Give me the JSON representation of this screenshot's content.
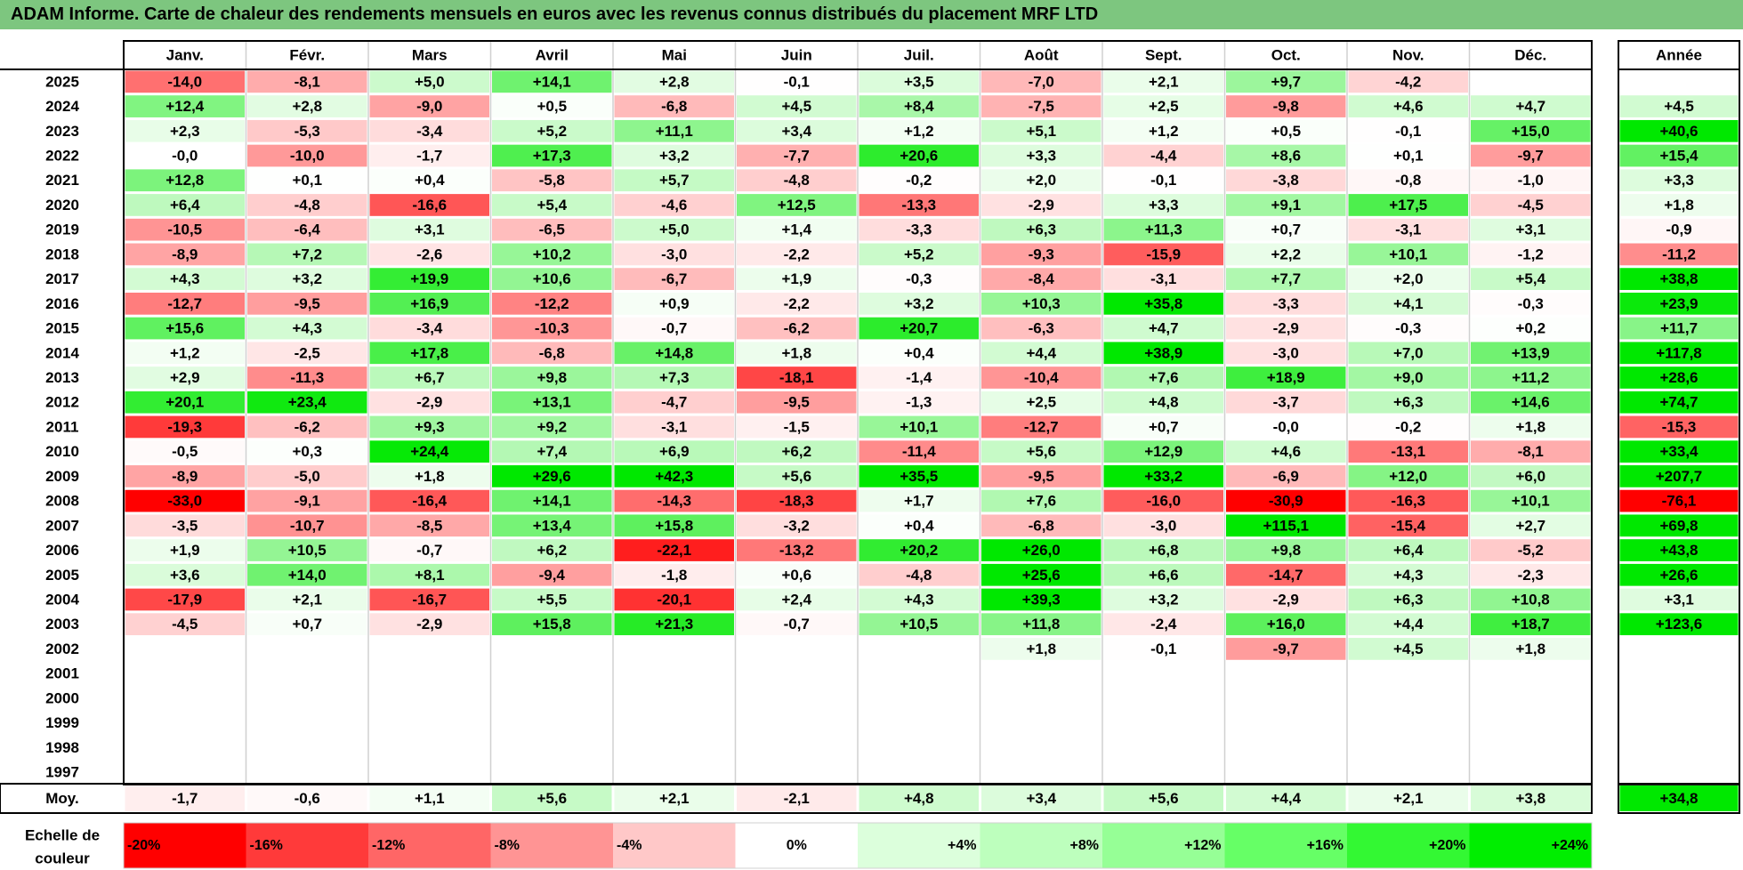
{
  "title": "ADAM Informe. Carte de chaleur des rendements mensuels en euros avec les revenus connus distribués du placement MRF LTD",
  "chart_data": {
    "type": "heatmap",
    "columns": [
      "Janv.",
      "Févr.",
      "Mars",
      "Avril",
      "Mai",
      "Juin",
      "Juil.",
      "Août",
      "Sept.",
      "Oct.",
      "Nov.",
      "Déc."
    ],
    "year_header": "Année",
    "rows": [
      {
        "year": "2025",
        "values": [
          "-14,0",
          "-8,1",
          "+5,0",
          "+14,1",
          "+2,8",
          "-0,1",
          "+3,5",
          "-7,0",
          "+2,1",
          "+9,7",
          "-4,2",
          ""
        ],
        "annual": ""
      },
      {
        "year": "2024",
        "values": [
          "+12,4",
          "+2,8",
          "-9,0",
          "+0,5",
          "-6,8",
          "+4,5",
          "+8,4",
          "-7,5",
          "+2,5",
          "-9,8",
          "+4,6",
          "+4,7"
        ],
        "annual": "+4,5"
      },
      {
        "year": "2023",
        "values": [
          "+2,3",
          "-5,3",
          "-3,4",
          "+5,2",
          "+11,1",
          "+3,4",
          "+1,2",
          "+5,1",
          "+1,2",
          "+0,5",
          "-0,1",
          "+15,0"
        ],
        "annual": "+40,6"
      },
      {
        "year": "2022",
        "values": [
          "-0,0",
          "-10,0",
          "-1,7",
          "+17,3",
          "+3,2",
          "-7,7",
          "+20,6",
          "+3,3",
          "-4,4",
          "+8,6",
          "+0,1",
          "-9,7"
        ],
        "annual": "+15,4"
      },
      {
        "year": "2021",
        "values": [
          "+12,8",
          "+0,1",
          "+0,4",
          "-5,8",
          "+5,7",
          "-4,8",
          "-0,2",
          "+2,0",
          "-0,1",
          "-3,8",
          "-0,8",
          "-1,0"
        ],
        "annual": "+3,3"
      },
      {
        "year": "2020",
        "values": [
          "+6,4",
          "-4,8",
          "-16,6",
          "+5,4",
          "-4,6",
          "+12,5",
          "-13,3",
          "-2,9",
          "+3,3",
          "+9,1",
          "+17,5",
          "-4,5"
        ],
        "annual": "+1,8"
      },
      {
        "year": "2019",
        "values": [
          "-10,5",
          "-6,4",
          "+3,1",
          "-6,5",
          "+5,0",
          "+1,4",
          "-3,3",
          "+6,3",
          "+11,3",
          "+0,7",
          "-3,1",
          "+3,1"
        ],
        "annual": "-0,9"
      },
      {
        "year": "2018",
        "values": [
          "-8,9",
          "+7,2",
          "-2,6",
          "+10,2",
          "-3,0",
          "-2,2",
          "+5,2",
          "-9,3",
          "-15,9",
          "+2,2",
          "+10,1",
          "-1,2"
        ],
        "annual": "-11,2"
      },
      {
        "year": "2017",
        "values": [
          "+4,3",
          "+3,2",
          "+19,9",
          "+10,6",
          "-6,7",
          "+1,9",
          "-0,3",
          "-8,4",
          "-3,1",
          "+7,7",
          "+2,0",
          "+5,4"
        ],
        "annual": "+38,8"
      },
      {
        "year": "2016",
        "values": [
          "-12,7",
          "-9,5",
          "+16,9",
          "-12,2",
          "+0,9",
          "-2,2",
          "+3,2",
          "+10,3",
          "+35,8",
          "-3,3",
          "+4,1",
          "-0,3"
        ],
        "annual": "+23,9"
      },
      {
        "year": "2015",
        "values": [
          "+15,6",
          "+4,3",
          "-3,4",
          "-10,3",
          "-0,7",
          "-6,2",
          "+20,7",
          "-6,3",
          "+4,7",
          "-2,9",
          "-0,3",
          "+0,2"
        ],
        "annual": "+11,7"
      },
      {
        "year": "2014",
        "values": [
          "+1,2",
          "-2,5",
          "+17,8",
          "-6,8",
          "+14,8",
          "+1,8",
          "+0,4",
          "+4,4",
          "+38,9",
          "-3,0",
          "+7,0",
          "+13,9"
        ],
        "annual": "+117,8"
      },
      {
        "year": "2013",
        "values": [
          "+2,9",
          "-11,3",
          "+6,7",
          "+9,8",
          "+7,3",
          "-18,1",
          "-1,4",
          "-10,4",
          "+7,6",
          "+18,9",
          "+9,0",
          "+11,2"
        ],
        "annual": "+28,6"
      },
      {
        "year": "2012",
        "values": [
          "+20,1",
          "+23,4",
          "-2,9",
          "+13,1",
          "-4,7",
          "-9,5",
          "-1,3",
          "+2,5",
          "+4,8",
          "-3,7",
          "+6,3",
          "+14,6"
        ],
        "annual": "+74,7"
      },
      {
        "year": "2011",
        "values": [
          "-19,3",
          "-6,2",
          "+9,3",
          "+9,2",
          "-3,1",
          "-1,5",
          "+10,1",
          "-12,7",
          "+0,7",
          "-0,0",
          "-0,2",
          "+1,8"
        ],
        "annual": "-15,3"
      },
      {
        "year": "2010",
        "values": [
          "-0,5",
          "+0,3",
          "+24,4",
          "+7,4",
          "+6,9",
          "+6,2",
          "-11,4",
          "+5,6",
          "+12,9",
          "+4,6",
          "-13,1",
          "-8,1"
        ],
        "annual": "+33,4"
      },
      {
        "year": "2009",
        "values": [
          "-8,9",
          "-5,0",
          "+1,8",
          "+29,6",
          "+42,3",
          "+5,6",
          "+35,5",
          "-9,5",
          "+33,2",
          "-6,9",
          "+12,0",
          "+6,0"
        ],
        "annual": "+207,7"
      },
      {
        "year": "2008",
        "values": [
          "-33,0",
          "-9,1",
          "-16,4",
          "+14,1",
          "-14,3",
          "-18,3",
          "+1,7",
          "+7,6",
          "-16,0",
          "-30,9",
          "-16,3",
          "+10,1"
        ],
        "annual": "-76,1"
      },
      {
        "year": "2007",
        "values": [
          "-3,5",
          "-10,7",
          "-8,5",
          "+13,4",
          "+15,8",
          "-3,2",
          "+0,4",
          "-6,8",
          "-3,0",
          "+115,1",
          "-15,4",
          "+2,7"
        ],
        "annual": "+69,8"
      },
      {
        "year": "2006",
        "values": [
          "+1,9",
          "+10,5",
          "-0,7",
          "+6,2",
          "-22,1",
          "-13,2",
          "+20,2",
          "+26,0",
          "+6,8",
          "+9,8",
          "+6,4",
          "-5,2"
        ],
        "annual": "+43,8"
      },
      {
        "year": "2005",
        "values": [
          "+3,6",
          "+14,0",
          "+8,1",
          "-9,4",
          "-1,8",
          "+0,6",
          "-4,8",
          "+25,6",
          "+6,6",
          "-14,7",
          "+4,3",
          "-2,3"
        ],
        "annual": "+26,6"
      },
      {
        "year": "2004",
        "values": [
          "-17,9",
          "+2,1",
          "-16,7",
          "+5,5",
          "-20,1",
          "+2,4",
          "+4,3",
          "+39,3",
          "+3,2",
          "-2,9",
          "+6,3",
          "+10,8"
        ],
        "annual": "+3,1"
      },
      {
        "year": "2003",
        "values": [
          "-4,5",
          "+0,7",
          "-2,9",
          "+15,8",
          "+21,3",
          "-0,7",
          "+10,5",
          "+11,8",
          "-2,4",
          "+16,0",
          "+4,4",
          "+18,7"
        ],
        "annual": "+123,6"
      },
      {
        "year": "2002",
        "values": [
          "",
          "",
          "",
          "",
          "",
          "",
          "",
          "+1,8",
          "-0,1",
          "-9,7",
          "+4,5",
          "+1,8"
        ],
        "annual": ""
      },
      {
        "year": "2001",
        "values": [
          "",
          "",
          "",
          "",
          "",
          "",
          "",
          "",
          "",
          "",
          "",
          ""
        ],
        "annual": ""
      },
      {
        "year": "2000",
        "values": [
          "",
          "",
          "",
          "",
          "",
          "",
          "",
          "",
          "",
          "",
          "",
          ""
        ],
        "annual": ""
      },
      {
        "year": "1999",
        "values": [
          "",
          "",
          "",
          "",
          "",
          "",
          "",
          "",
          "",
          "",
          "",
          ""
        ],
        "annual": ""
      },
      {
        "year": "1998",
        "values": [
          "",
          "",
          "",
          "",
          "",
          "",
          "",
          "",
          "",
          "",
          "",
          ""
        ],
        "annual": ""
      },
      {
        "year": "1997",
        "values": [
          "",
          "",
          "",
          "",
          "",
          "",
          "",
          "",
          "",
          "",
          "",
          ""
        ],
        "annual": ""
      }
    ],
    "average": {
      "label": "Moy.",
      "values": [
        "-1,7",
        "-0,6",
        "+1,1",
        "+5,6",
        "+2,1",
        "-2,1",
        "+4,8",
        "+3,4",
        "+5,6",
        "+4,4",
        "+2,1",
        "+3,8"
      ],
      "annual": "+34,8"
    },
    "scale": {
      "label_line1": "Echelle de",
      "label_line2": "couleur",
      "stops": [
        {
          "label": "-20%",
          "value": -20,
          "color": "#ff0000"
        },
        {
          "label": "-16%",
          "value": -16,
          "color": "#ff3a3a"
        },
        {
          "label": "-12%",
          "value": -12,
          "color": "#ff6666"
        },
        {
          "label": "-8%",
          "value": -8,
          "color": "#ff9494"
        },
        {
          "label": "-4%",
          "value": -4,
          "color": "#ffc8c8"
        },
        {
          "label": "0%",
          "value": 0,
          "color": "#ffffff"
        },
        {
          "label": "+4%",
          "value": 4,
          "color": "#dcffdc"
        },
        {
          "label": "+8%",
          "value": 8,
          "color": "#bdffbd"
        },
        {
          "label": "+12%",
          "value": 12,
          "color": "#96ff96"
        },
        {
          "label": "+16%",
          "value": 16,
          "color": "#66ff66"
        },
        {
          "label": "+20%",
          "value": 20,
          "color": "#33f833"
        },
        {
          "label": "+24%",
          "value": 24,
          "color": "#00ee00"
        }
      ]
    }
  }
}
